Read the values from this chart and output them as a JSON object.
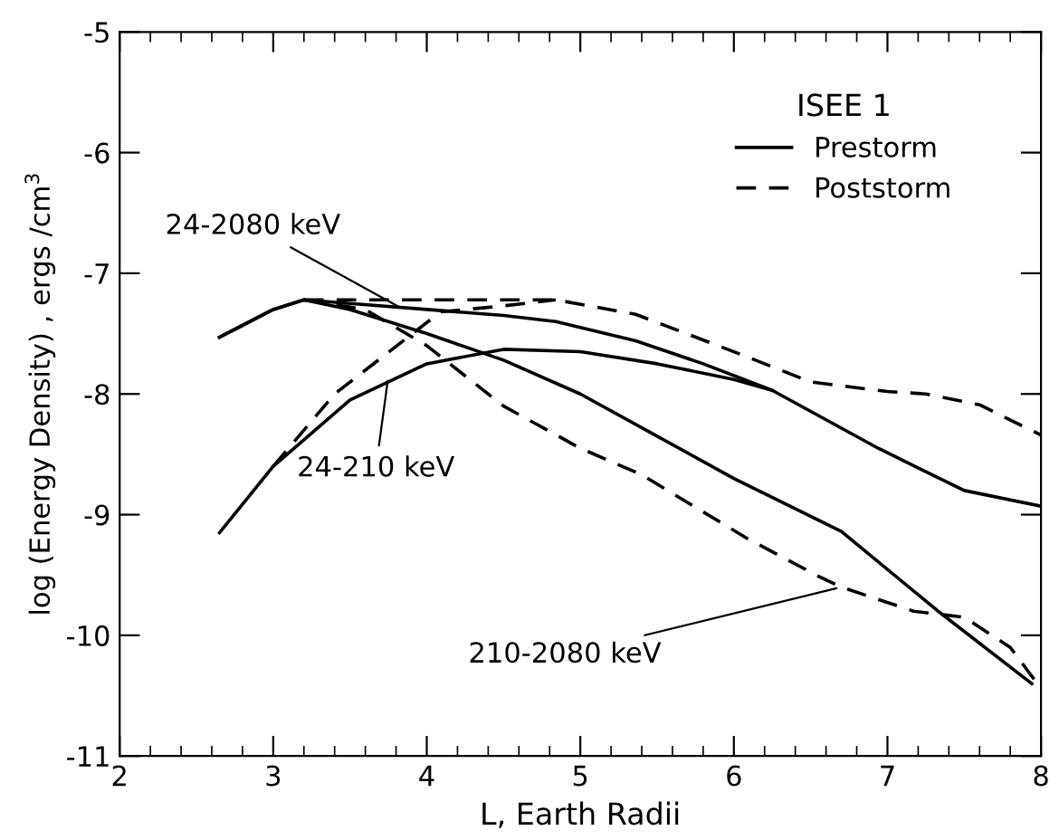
{
  "chart_data": {
    "type": "line",
    "xlabel": "L, Earth Radii",
    "ylabel": "log (Energy Density) , ergs /cm$^{3}$",
    "legend_title": "ISEE 1",
    "legend": "top right",
    "grid": false,
    "marker": "none",
    "xlim": [
      2,
      8
    ],
    "ylim": [
      -11,
      -5
    ],
    "xticks": [
      2,
      3,
      4,
      5,
      6,
      7,
      8
    ],
    "yticks": [
      -11,
      -10,
      -9,
      -8,
      -7,
      -6,
      -5
    ],
    "series": [
      {
        "name": "Prestorm",
        "color": "#000000",
        "line_style": "solid",
        "x": [
          2.65,
          3.0,
          3.2,
          3.5,
          4.0,
          4.5,
          4.84,
          5.36,
          5.8,
          6.25,
          6.94,
          7.5,
          8.0
        ],
        "values": [
          -7.53,
          -7.3,
          -7.22,
          -7.25,
          -7.3,
          -7.35,
          -7.4,
          -7.56,
          -7.75,
          -7.97,
          -8.45,
          -8.8,
          -8.93
        ]
      },
      {
        "color": "#000000",
        "line_style": "solid",
        "x": [
          2.65,
          3.0,
          3.5,
          4.0,
          4.5,
          5.0,
          5.5,
          6.0,
          6.25
        ],
        "values": [
          -9.15,
          -8.6,
          -8.05,
          -7.75,
          -7.63,
          -7.65,
          -7.75,
          -7.88,
          -7.97
        ]
      },
      {
        "color": "#000000",
        "line_style": "solid",
        "x": [
          2.65,
          3.0,
          3.2,
          3.5,
          4.0,
          4.5,
          5.0,
          5.5,
          6.0,
          6.7,
          7.33,
          7.94
        ],
        "values": [
          -7.53,
          -7.3,
          -7.22,
          -7.3,
          -7.5,
          -7.72,
          -8.0,
          -8.35,
          -8.7,
          -9.14,
          -9.8,
          -10.4
        ]
      },
      {
        "name": "Poststorm",
        "color": "#000000",
        "line_style": "dashed",
        "x": [
          3.2,
          4.0,
          4.84,
          5.36,
          6.0,
          6.5,
          7.0,
          7.25,
          7.6,
          8.0
        ],
        "values": [
          -7.22,
          -7.22,
          -7.22,
          -7.34,
          -7.65,
          -7.9,
          -7.98,
          -8.0,
          -8.09,
          -8.34
        ]
      },
      {
        "color": "#000000",
        "line_style": "dashed",
        "x": [
          3.0,
          3.4,
          4.09,
          4.5,
          4.84
        ],
        "values": [
          -8.6,
          -8.0,
          -7.32,
          -7.27,
          -7.22
        ]
      },
      {
        "color": "#000000",
        "line_style": "dashed",
        "x": [
          3.2,
          3.6,
          4.0,
          4.5,
          5.0,
          5.4,
          6.09,
          6.55,
          6.7,
          7.17,
          7.5,
          7.8,
          8.0
        ],
        "values": [
          -7.22,
          -7.3,
          -7.6,
          -8.1,
          -8.45,
          -8.67,
          -9.2,
          -9.51,
          -9.6,
          -9.8,
          -9.85,
          -10.1,
          -10.44
        ]
      }
    ],
    "annotations": [
      {
        "text": "24-2080 keV",
        "x": 3.85,
        "y": -7.3
      },
      {
        "text": "24-210 keV",
        "x": 3.75,
        "y": -7.85
      },
      {
        "text": "210-2080 keV",
        "x": 6.7,
        "y": -9.6
      }
    ]
  }
}
